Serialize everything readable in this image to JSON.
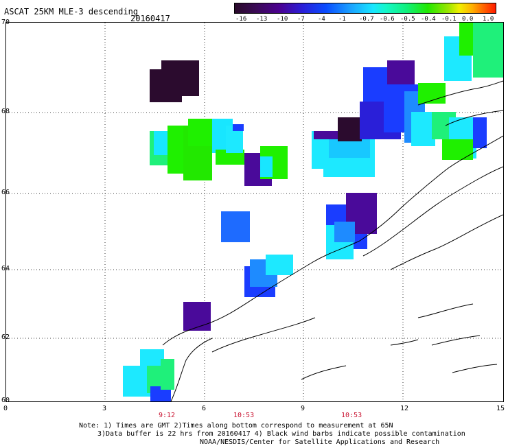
{
  "header": {
    "title": "ASCAT 25KM MLE-3 descending",
    "date": "20160417"
  },
  "colorbar": {
    "labels": [
      "-16",
      "-13",
      "-10",
      "-7",
      "-4",
      "-1",
      "-0.7",
      "-0.6",
      "-0.5",
      "-0.4",
      "-0.1",
      "0.0",
      "1.0"
    ]
  },
  "axes": {
    "lat_labels": [
      "70",
      "68",
      "66",
      "64",
      "62",
      "60"
    ],
    "lon_labels": [
      "0",
      "3",
      "6",
      "9",
      "12",
      "15"
    ],
    "time_labels": [
      "9:12",
      "10:53",
      "10:53"
    ]
  },
  "notes": {
    "line1": "Note: 1) Times are GMT 2)Times along bottom correspond to measurement at 65N",
    "line2": "3)Data buffer is 22 hrs from 20160417 4) Black wind barbs indicate possible contamination",
    "line3": "NOAA/NESDIS/Center for Satellite Applications and Research"
  },
  "colors": {
    "darkest": "#2b0b2e",
    "purple": "#4a0a9a",
    "blue": "#1a3dff",
    "light-blue": "#1e8bff",
    "cyan": "#1de9ff",
    "teal": "#17f2c0",
    "green": "#1ff000"
  }
}
